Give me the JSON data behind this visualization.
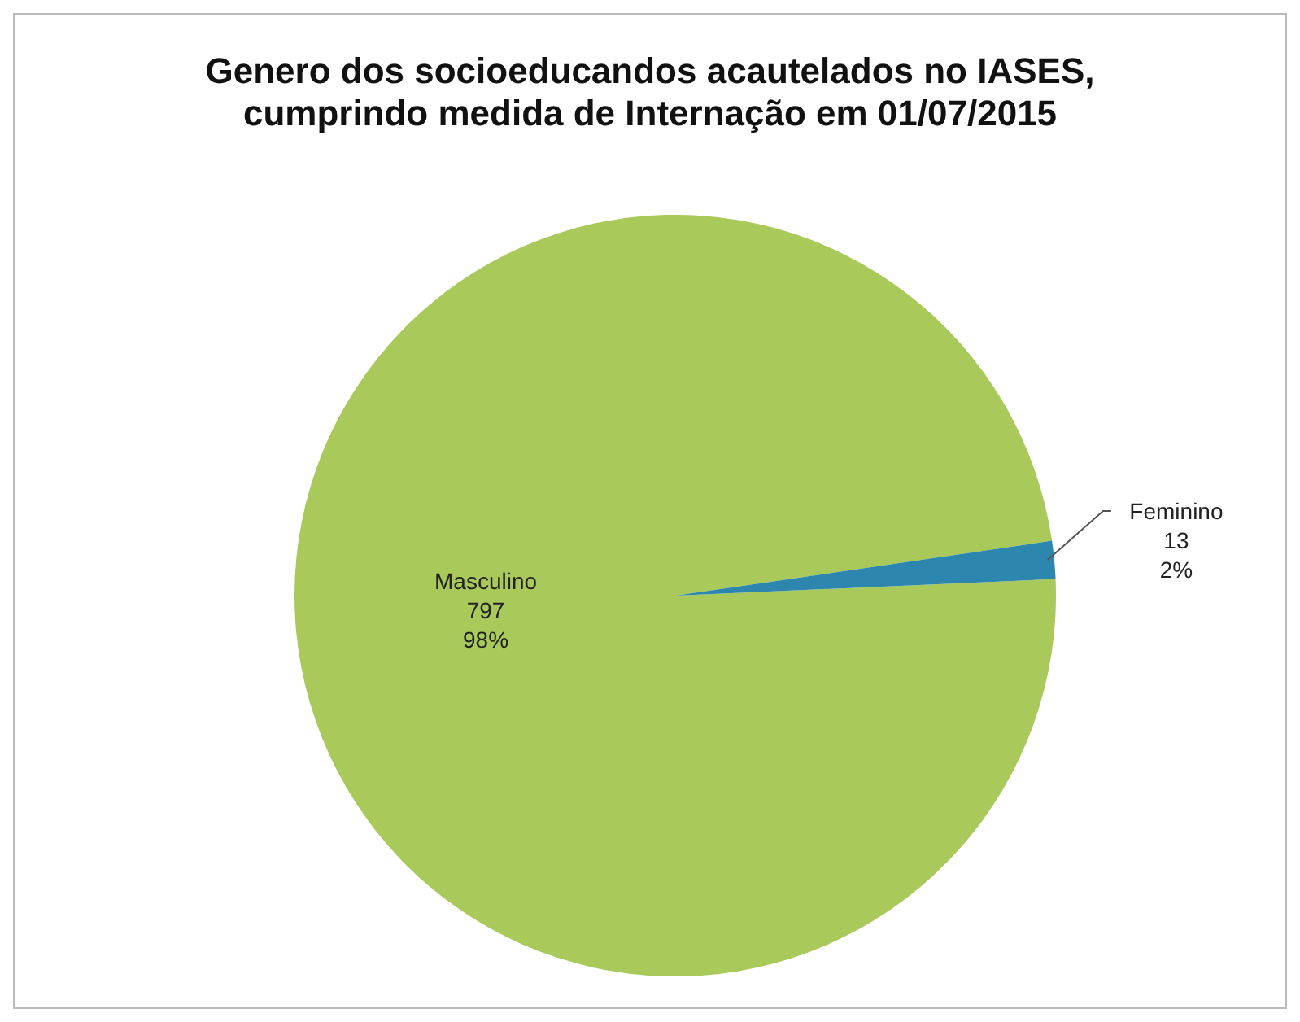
{
  "chart_data": {
    "type": "pie",
    "title": "Genero dos socioeducandos acautelados no IASES,\ncumprindo medida de Internação em 01/07/2015",
    "categories": [
      "Masculino",
      "Feminino"
    ],
    "values": [
      797,
      13
    ],
    "colors": [
      "#a9c95b",
      "#2c86ad"
    ],
    "value_labels": [
      "797\n98%",
      "13\n2%"
    ],
    "legend": false
  }
}
